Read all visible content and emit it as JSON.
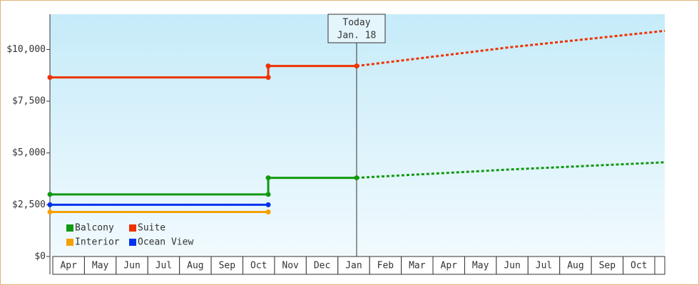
{
  "chart_data": {
    "type": "line",
    "categories": [
      "Apr",
      "May",
      "Jun",
      "Jul",
      "Aug",
      "Sep",
      "Oct",
      "Nov",
      "Dec",
      "Jan",
      "Feb",
      "Mar",
      "Apr",
      "May",
      "Jun",
      "Jul",
      "Aug",
      "Sep",
      "Oct"
    ],
    "xlim": [
      -0.09,
      19.32
    ],
    "ylim": [
      0,
      11700
    ],
    "yticks": [
      {
        "value": 0,
        "label": "$0"
      },
      {
        "value": 2500,
        "label": "$2,500"
      },
      {
        "value": 5000,
        "label": "$5,000"
      },
      {
        "value": 7500,
        "label": "$7,500"
      },
      {
        "value": 10000,
        "label": "$10,000"
      }
    ],
    "today": {
      "x": 9.59,
      "label": [
        "Today",
        "Jan. 18"
      ]
    },
    "series": [
      {
        "name": "Balcony",
        "color": "#119911",
        "x": [
          -0.09,
          6.8,
          6.8,
          9.59
        ],
        "values": [
          3000,
          3000,
          3800,
          3800
        ],
        "forecast": {
          "x": [
            9.59,
            14.4,
            19.32
          ],
          "values": [
            3800,
            4200,
            4550
          ]
        }
      },
      {
        "name": "Suite",
        "color": "#ee3300",
        "x": [
          -0.09,
          6.8,
          6.8,
          9.59
        ],
        "values": [
          8650,
          8650,
          9200,
          9200
        ],
        "forecast": {
          "x": [
            9.59,
            14.4,
            19.32
          ],
          "values": [
            9200,
            10100,
            10900
          ]
        }
      },
      {
        "name": "Interior",
        "color": "#f5a000",
        "x": [
          -0.09,
          6.8
        ],
        "values": [
          2150,
          2150
        ]
      },
      {
        "name": "Ocean View",
        "color": "#0033ee",
        "x": [
          -0.09,
          6.8
        ],
        "values": [
          2500,
          2500
        ]
      }
    ],
    "legend": "lower left"
  }
}
